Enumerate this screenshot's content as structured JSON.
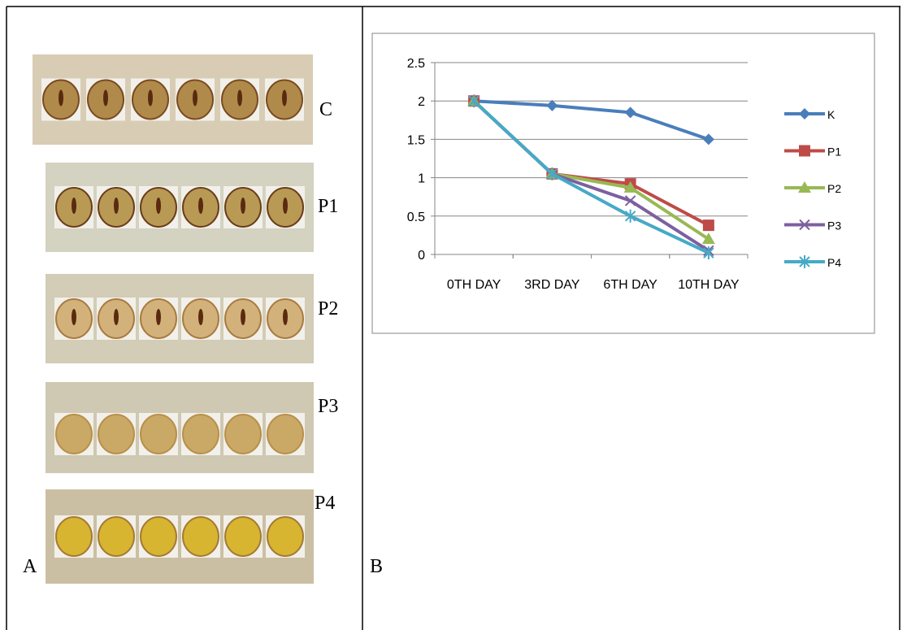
{
  "panels": {
    "photo_labels": [
      "C",
      "P1",
      "P2",
      "P3",
      "P4"
    ],
    "left_label": "A",
    "right_label": "B"
  },
  "chart_data": {
    "type": "line",
    "categories": [
      "0TH DAY",
      "3RD DAY",
      "6TH DAY",
      "10TH DAY"
    ],
    "series": [
      {
        "name": "K",
        "color": "#4a7ebb",
        "marker": "diamond",
        "values": [
          2,
          1.94,
          1.85,
          1.5
        ]
      },
      {
        "name": "P1",
        "color": "#be4b48",
        "marker": "square",
        "values": [
          2,
          1.05,
          0.92,
          0.38
        ]
      },
      {
        "name": "P2",
        "color": "#98b954",
        "marker": "triangle",
        "values": [
          2,
          1.05,
          0.87,
          0.2
        ]
      },
      {
        "name": "P3",
        "color": "#7d60a0",
        "marker": "x",
        "values": [
          2,
          1.05,
          0.7,
          0.05
        ]
      },
      {
        "name": "P4",
        "color": "#46aac5",
        "marker": "star",
        "values": [
          2,
          1.05,
          0.5,
          0.02
        ]
      }
    ],
    "ylim": [
      0,
      2.5
    ],
    "yticks": [
      0,
      0.5,
      1,
      1.5,
      2,
      2.5
    ],
    "grid": true,
    "legend": "right"
  }
}
